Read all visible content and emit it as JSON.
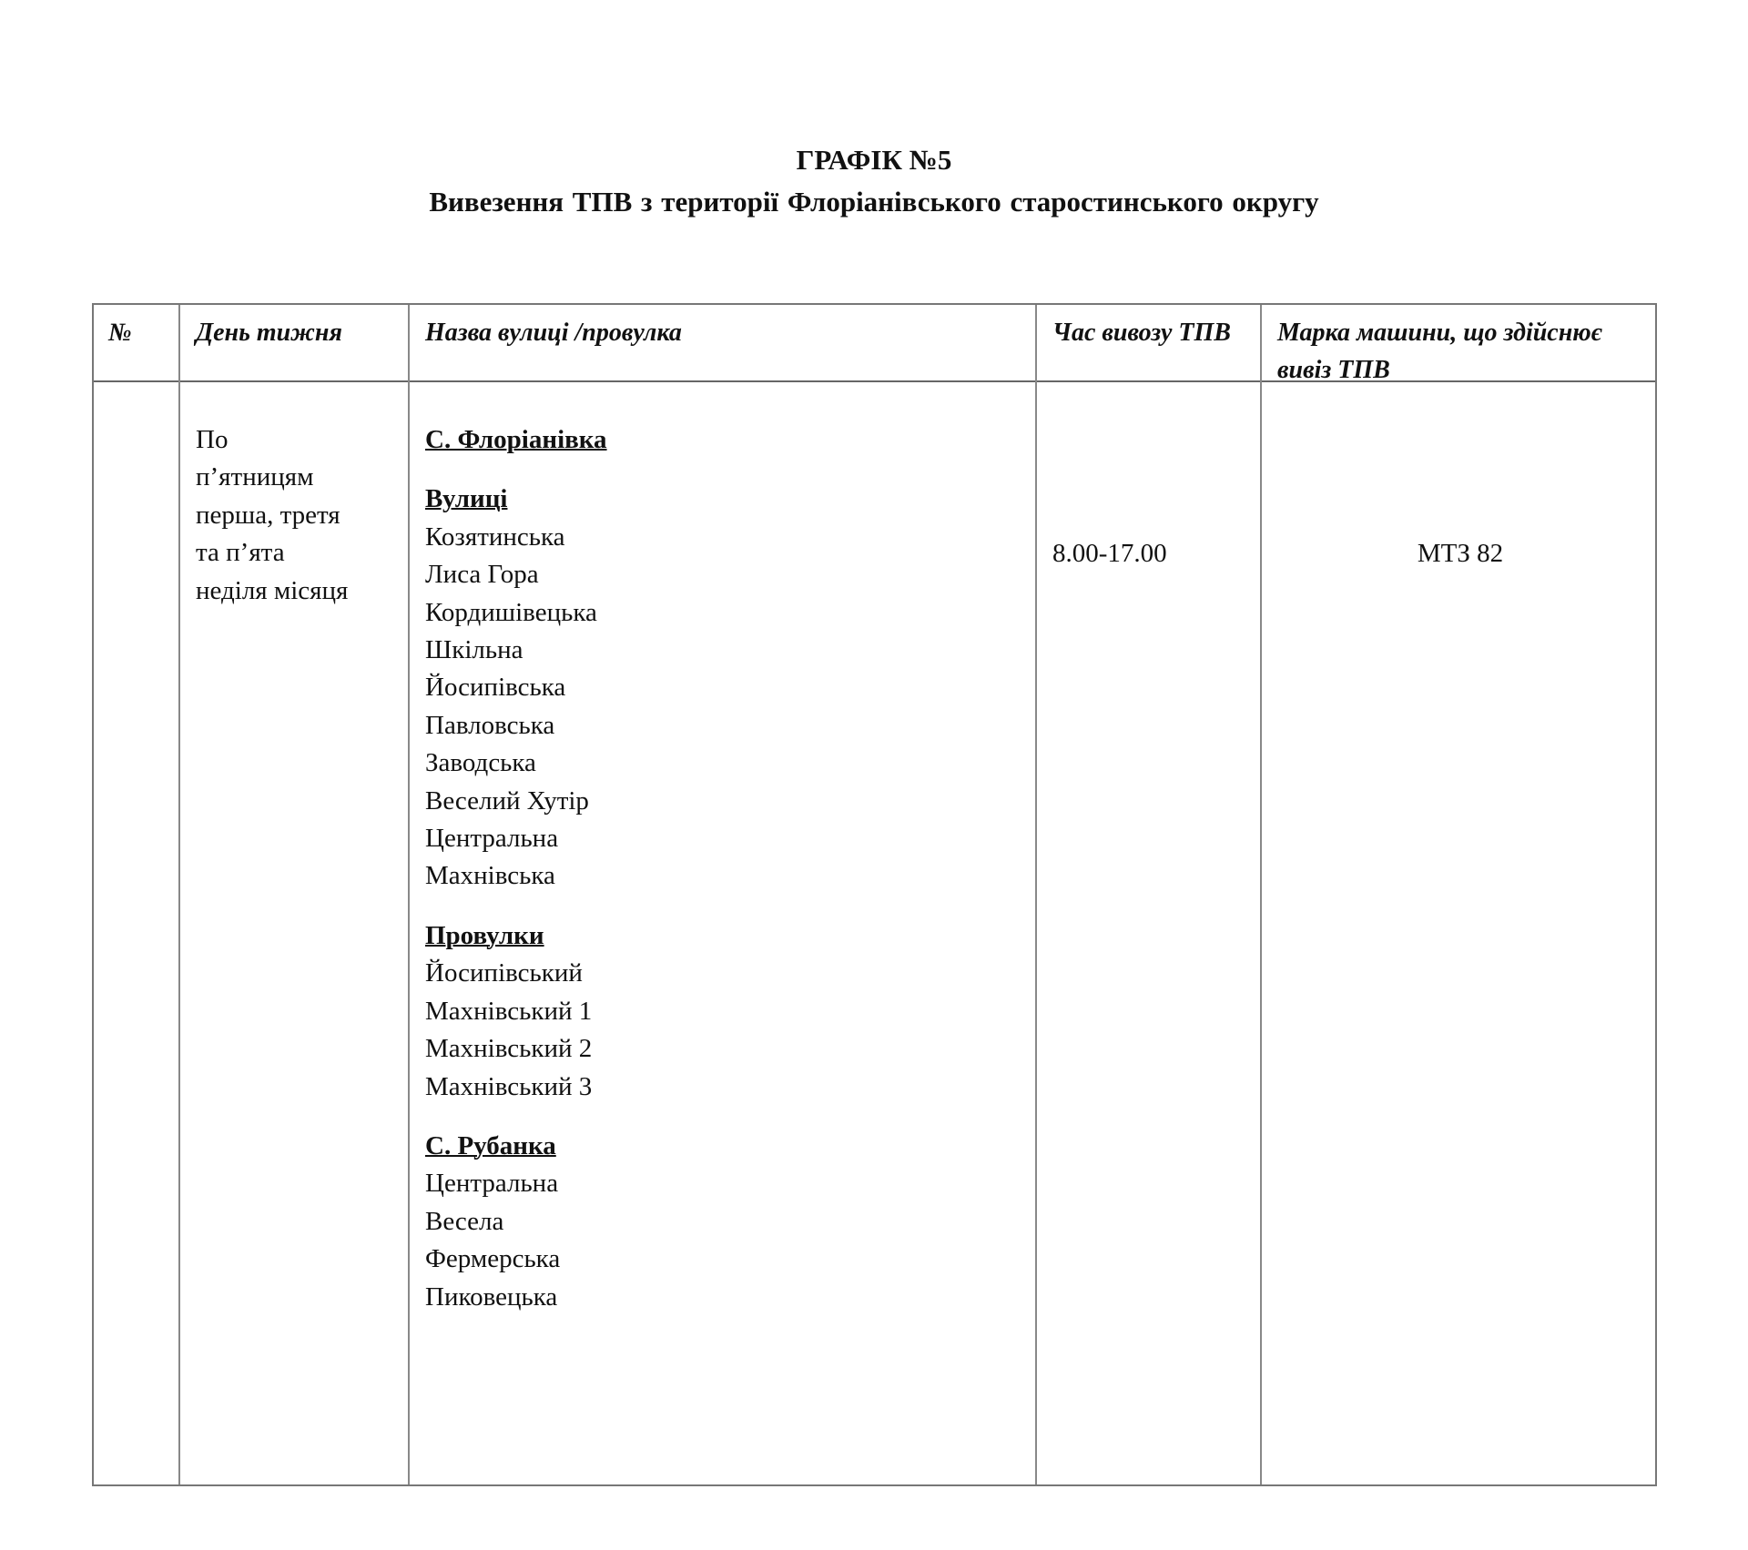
{
  "title": "ГРАФІК №5",
  "subtitle": "Вивезення  ТПВ  з території Флоріанівського старостинського округу",
  "table": {
    "headers": [
      "№",
      "День тижня",
      "Назва вулиці /провулка",
      "Час вивозу ТПВ",
      "Марка машини, що здійснює вивіз ТПВ"
    ],
    "row": {
      "number": "",
      "day": [
        "По",
        "п’ятницям",
        "перша, третя",
        "та п’ята",
        "неділя місяця"
      ],
      "village1": "С. Флоріанівка",
      "streets_label": "Вулиці",
      "streets": [
        "Козятинська",
        "Лиса Гора",
        "Кордишівецька",
        "Шкільна",
        "Йосипівська",
        "Павловська",
        "Заводська",
        "Веселий Хутір",
        "Центральна",
        "Махнівська"
      ],
      "lanes_label": "Провулки",
      "lanes": [
        "Йосипівський",
        "Махнівський 1",
        "Махнівський 2",
        "Махнівський 3"
      ],
      "village2": "С. Рубанка",
      "village2_streets": [
        "Центральна",
        "Весела",
        "Фермерська",
        "Пиковецька"
      ],
      "time": "8.00-17.00",
      "vehicle": "МТЗ 82"
    }
  }
}
